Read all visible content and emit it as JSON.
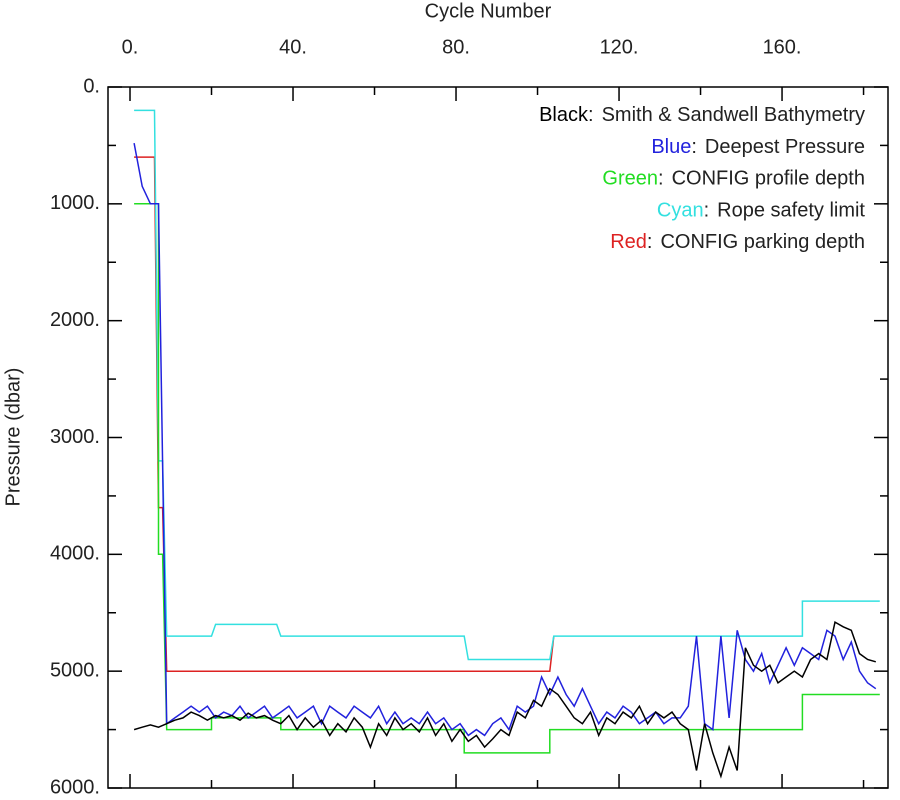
{
  "chart_data": {
    "type": "line",
    "xlabel": "Cycle Number",
    "ylabel": "Pressure (dbar)",
    "xlim": [
      -5.4,
      186
    ],
    "ylim": [
      0,
      6000
    ],
    "y_reversed": true,
    "x_axis_position": "top",
    "xticks": [
      {
        "value": 0,
        "label": "0."
      },
      {
        "value": 40,
        "label": "40."
      },
      {
        "value": 80,
        "label": "80."
      },
      {
        "value": 120,
        "label": "120."
      },
      {
        "value": 160,
        "label": "160."
      }
    ],
    "xminorticks": [
      20,
      60,
      100,
      140,
      180
    ],
    "yticks": [
      {
        "value": 0,
        "label": "0."
      },
      {
        "value": 1000,
        "label": "1000."
      },
      {
        "value": 2000,
        "label": "2000."
      },
      {
        "value": 3000,
        "label": "3000."
      },
      {
        "value": 4000,
        "label": "4000."
      },
      {
        "value": 5000,
        "label": "5000."
      },
      {
        "value": 6000,
        "label": "6000."
      }
    ],
    "yminorticks": [
      500,
      1500,
      2500,
      3500,
      4500,
      5500
    ],
    "legend_separator": ":",
    "series": [
      {
        "legend_prefix": "Black",
        "name": "Smith & Sandwell Bathymetry",
        "color": "#000000",
        "x": [
          1,
          3,
          5,
          7,
          9,
          11,
          13,
          15,
          17,
          19,
          21,
          23,
          25,
          27,
          29,
          31,
          33,
          35,
          37,
          39,
          41,
          43,
          45,
          47,
          49,
          51,
          53,
          55,
          57,
          59,
          61,
          63,
          65,
          67,
          69,
          71,
          73,
          75,
          77,
          79,
          81,
          83,
          85,
          87,
          89,
          91,
          93,
          95,
          97,
          99,
          101,
          103,
          105,
          107,
          109,
          111,
          113,
          115,
          117,
          119,
          121,
          123,
          125,
          127,
          129,
          131,
          133,
          135,
          137,
          139,
          141,
          143,
          145,
          147,
          149,
          151,
          153,
          155,
          157,
          159,
          161,
          163,
          165,
          167,
          169,
          171,
          173,
          175,
          177,
          179,
          181,
          183
        ],
        "values": [
          5500,
          5480,
          5460,
          5480,
          5450,
          5420,
          5400,
          5350,
          5380,
          5420,
          5380,
          5400,
          5380,
          5420,
          5360,
          5400,
          5380,
          5420,
          5450,
          5380,
          5500,
          5400,
          5480,
          5420,
          5550,
          5450,
          5520,
          5400,
          5480,
          5650,
          5450,
          5550,
          5400,
          5500,
          5450,
          5520,
          5400,
          5550,
          5450,
          5600,
          5500,
          5600,
          5550,
          5650,
          5580,
          5500,
          5550,
          5350,
          5400,
          5250,
          5300,
          5150,
          5200,
          5300,
          5400,
          5450,
          5350,
          5550,
          5400,
          5450,
          5350,
          5400,
          5300,
          5450,
          5350,
          5400,
          5350,
          5450,
          5500,
          5850,
          5450,
          5700,
          5900,
          5650,
          5850,
          4800,
          4950,
          5000,
          4950,
          5100,
          5050,
          5000,
          5050,
          4900,
          4850,
          4900,
          4580,
          4620,
          4650,
          4850,
          4900,
          4920
        ]
      },
      {
        "legend_prefix": "Blue",
        "name": "Deepest Pressure",
        "color": "#2222dd",
        "x": [
          1,
          3,
          5,
          7,
          9,
          11,
          13,
          15,
          17,
          19,
          21,
          23,
          25,
          27,
          29,
          31,
          33,
          35,
          37,
          39,
          41,
          43,
          45,
          47,
          49,
          51,
          53,
          55,
          57,
          59,
          61,
          63,
          65,
          67,
          69,
          71,
          73,
          75,
          77,
          79,
          81,
          83,
          85,
          87,
          89,
          91,
          93,
          95,
          97,
          99,
          101,
          103,
          105,
          107,
          109,
          111,
          113,
          115,
          117,
          119,
          121,
          123,
          125,
          127,
          129,
          131,
          133,
          135,
          137,
          139,
          141,
          143,
          145,
          147,
          149,
          151,
          153,
          155,
          157,
          159,
          161,
          163,
          165,
          167,
          169,
          171,
          173,
          175,
          177,
          179,
          181,
          183
        ],
        "values": [
          480,
          850,
          1000,
          1000,
          5450,
          5400,
          5350,
          5300,
          5350,
          5300,
          5400,
          5350,
          5380,
          5300,
          5400,
          5350,
          5300,
          5400,
          5350,
          5300,
          5400,
          5350,
          5300,
          5450,
          5300,
          5350,
          5400,
          5300,
          5350,
          5400,
          5300,
          5450,
          5350,
          5450,
          5400,
          5450,
          5350,
          5450,
          5400,
          5500,
          5450,
          5550,
          5500,
          5550,
          5450,
          5400,
          5500,
          5300,
          5350,
          5300,
          5050,
          5200,
          5050,
          5200,
          5300,
          5150,
          5300,
          5450,
          5350,
          5400,
          5300,
          5350,
          5450,
          5400,
          5350,
          5450,
          5400,
          5400,
          5300,
          4700,
          5450,
          5500,
          4700,
          5400,
          4650,
          4900,
          5000,
          4850,
          5100,
          4950,
          4800,
          4950,
          4800,
          4850,
          4900,
          4650,
          4700,
          4900,
          4750,
          5000,
          5100,
          5150
        ]
      },
      {
        "legend_prefix": "Green",
        "name": "CONFIG profile depth",
        "color": "#22dd22",
        "x": [
          1,
          6,
          7,
          7,
          8,
          9,
          20,
          20,
          37,
          37,
          82,
          82,
          103,
          103,
          165,
          165,
          184
        ],
        "values": [
          1000,
          1000,
          1000,
          4000,
          4000,
          5500,
          5500,
          5400,
          5400,
          5500,
          5500,
          5700,
          5700,
          5500,
          5500,
          5200,
          5200
        ]
      },
      {
        "legend_prefix": "Cyan",
        "name": "Rope safety limit",
        "color": "#33e0e0",
        "x": [
          1,
          6,
          7,
          8,
          9,
          20,
          21,
          36,
          37,
          82,
          83,
          103,
          104,
          165,
          165,
          184
        ],
        "values": [
          200,
          200,
          3200,
          3200,
          4700,
          4700,
          4600,
          4600,
          4700,
          4700,
          4900,
          4900,
          4700,
          4700,
          4400,
          4400
        ]
      },
      {
        "legend_prefix": "Red",
        "name": "CONFIG parking depth",
        "color": "#dd2222",
        "x": [
          1,
          6,
          7,
          8,
          9,
          103,
          104
        ],
        "values": [
          600,
          600,
          3600,
          3600,
          5000,
          5000,
          4700
        ]
      }
    ]
  }
}
